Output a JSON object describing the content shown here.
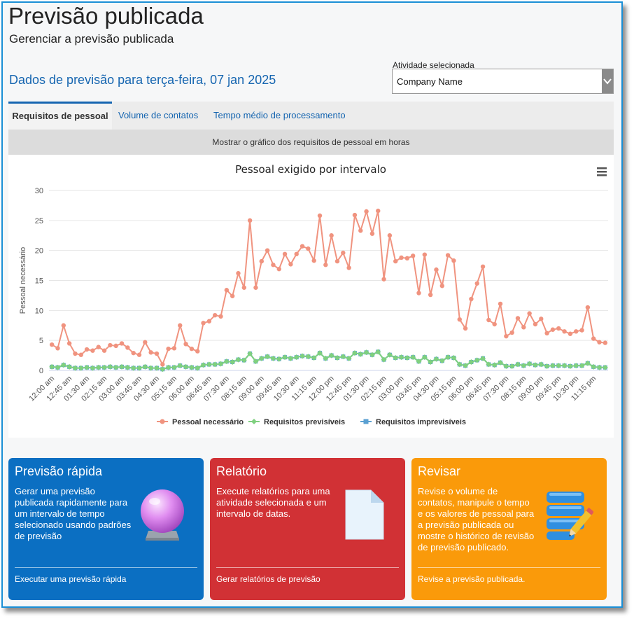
{
  "header": {
    "title": "Previsão publicada",
    "subtitle": "Gerenciar a previsão publicada"
  },
  "forecast_date": "Dados de previsão para terça-feira, 07 jan 2025",
  "activity": {
    "label": "Atividade selecionada",
    "value": "Company Name"
  },
  "tabs": [
    {
      "label": "Requisitos de pessoal",
      "active": true
    },
    {
      "label": "Volume de contatos",
      "active": false
    },
    {
      "label": "Tempo médio de processamento",
      "active": false
    }
  ],
  "chart_toggle_label": "Mostrar o gráfico dos requisitos de pessoal em horas",
  "chart_data": {
    "type": "line",
    "title": "Pessoal exigido por intervalo",
    "ylabel": "Pessoal necessário",
    "xlabel": "",
    "ylim": [
      0,
      30
    ],
    "yticks": [
      0,
      5,
      10,
      15,
      20,
      25,
      30
    ],
    "xtick_labels": [
      "12:00 am",
      "12:45 am",
      "01:30 am",
      "02:15 am",
      "03:00 am",
      "03:45 am",
      "04:30 am",
      "05:15 am",
      "06:00 am",
      "06:45 am",
      "07:30 am",
      "08:15 am",
      "09:00 am",
      "09:45 am",
      "10:30 am",
      "11:15 am",
      "12:00 pm",
      "12:45 pm",
      "01:30 pm",
      "02:15 pm",
      "03:00 pm",
      "03:45 pm",
      "04:30 pm",
      "05:15 pm",
      "06:00 pm",
      "06:45 pm",
      "07:30 pm",
      "08:15 pm",
      "09:00 pm",
      "09:45 pm",
      "10:30 pm",
      "11:15 pm"
    ],
    "legend_position": "bottom-center",
    "grid": true,
    "series": [
      {
        "name": "Pessoal necessário",
        "color": "#f0937f",
        "marker": "circle",
        "values": [
          4.3,
          3.7,
          7.5,
          4.5,
          2.8,
          2.6,
          3.5,
          3.3,
          3.9,
          3.3,
          4.2,
          4.1,
          4.5,
          3.8,
          2.9,
          2.6,
          4.7,
          3.0,
          2.8,
          1.0,
          3.6,
          3.7,
          7.5,
          4.4,
          3.6,
          3.2,
          7.9,
          8.2,
          9.2,
          9.0,
          13.4,
          12.4,
          16.2,
          13.8,
          25.0,
          13.8,
          18.2,
          20.0,
          17.6,
          16.9,
          19.4,
          17.7,
          19.4,
          20.7,
          20.3,
          18.3,
          25.8,
          17.6,
          22.5,
          18.2,
          19.6,
          17.1,
          25.9,
          23.3,
          26.5,
          22.8,
          26.6,
          15.2,
          22.5,
          18.2,
          18.8,
          18.7,
          19.1,
          12.9,
          19.3,
          12.6,
          16.8,
          14.1,
          19.2,
          18.3,
          8.5,
          7.0,
          11.9,
          14.5,
          17.3,
          8.4,
          7.7,
          11.1,
          5.7,
          6.3,
          8.7,
          7.2,
          9.5,
          7.7,
          8.6,
          6.2,
          6.8,
          7.0,
          6.5,
          6.1,
          6.5,
          6.7,
          10.5,
          5.3,
          4.7,
          4.6
        ]
      },
      {
        "name": "Requisitos previsíveis",
        "color": "#7fd07f",
        "marker": "diamond",
        "values": [
          0.6,
          0.5,
          0.9,
          0.6,
          0.4,
          0.4,
          0.5,
          0.4,
          0.5,
          0.5,
          0.6,
          0.5,
          0.6,
          0.5,
          0.4,
          0.4,
          0.6,
          0.4,
          0.4,
          0.2,
          0.5,
          0.5,
          0.8,
          0.6,
          0.5,
          0.4,
          0.9,
          1.0,
          1.0,
          1.1,
          1.5,
          1.4,
          1.8,
          1.7,
          2.8,
          1.5,
          2.0,
          2.3,
          2.0,
          1.9,
          2.2,
          2.0,
          2.2,
          2.4,
          2.3,
          2.1,
          2.9,
          2.0,
          2.5,
          2.1,
          2.3,
          2.0,
          2.9,
          2.7,
          3.0,
          2.6,
          3.1,
          1.8,
          2.6,
          2.1,
          2.2,
          2.1,
          2.2,
          1.5,
          2.2,
          1.4,
          1.9,
          1.6,
          2.2,
          2.1,
          1.0,
          0.8,
          1.4,
          1.7,
          2.0,
          1.0,
          0.9,
          1.3,
          0.7,
          0.7,
          1.0,
          0.8,
          1.1,
          0.9,
          1.0,
          0.7,
          0.8,
          0.8,
          0.8,
          0.7,
          0.8,
          0.8,
          1.2,
          0.6,
          0.5,
          0.5
        ]
      },
      {
        "name": "Requisitos imprevisíveis",
        "color": "#5aa0d2",
        "marker": "square",
        "values": [
          0.6,
          0.5,
          0.9,
          0.6,
          0.4,
          0.4,
          0.5,
          0.4,
          0.5,
          0.5,
          0.6,
          0.5,
          0.6,
          0.5,
          0.4,
          0.4,
          0.6,
          0.4,
          0.4,
          0.2,
          0.5,
          0.5,
          0.8,
          0.6,
          0.5,
          0.4,
          0.9,
          1.0,
          1.0,
          1.1,
          1.5,
          1.4,
          1.8,
          1.7,
          2.8,
          1.5,
          2.0,
          2.3,
          2.0,
          1.9,
          2.2,
          2.0,
          2.2,
          2.4,
          2.3,
          2.1,
          2.9,
          2.0,
          2.5,
          2.1,
          2.3,
          2.0,
          2.9,
          2.7,
          3.0,
          2.6,
          3.1,
          1.8,
          2.6,
          2.1,
          2.2,
          2.1,
          2.2,
          1.5,
          2.2,
          1.4,
          1.9,
          1.6,
          2.2,
          2.1,
          1.0,
          0.8,
          1.4,
          1.7,
          2.0,
          1.0,
          0.9,
          1.3,
          0.7,
          0.7,
          1.0,
          0.8,
          1.1,
          0.9,
          1.0,
          0.7,
          0.8,
          0.8,
          0.8,
          0.7,
          0.8,
          0.8,
          1.2,
          0.6,
          0.5,
          0.5
        ]
      }
    ]
  },
  "cards": [
    {
      "title": "Previsão rápida",
      "description": "Gerar uma previsão publicada rapidamente para um intervalo de tempo selecionado usando padrões de previsão",
      "link": "Executar uma previsão rápida",
      "color": "#0b6fc2",
      "icon": "crystal-ball-icon"
    },
    {
      "title": "Relatório",
      "description": "Execute relatórios para uma atividade selecionada e um intervalo de datas.",
      "link": "Gerar relatórios de previsão",
      "color": "#d13135",
      "icon": "document-icon"
    },
    {
      "title": "Revisar",
      "description": "Revise o volume de contatos, manipule o tempo e os valores de pessoal para a previsão publicada ou mostre o histórico de revisão de previsão publicado.",
      "link": "Revise a previsão publicada.",
      "color": "#fa9a0a",
      "icon": "database-edit-icon"
    }
  ]
}
